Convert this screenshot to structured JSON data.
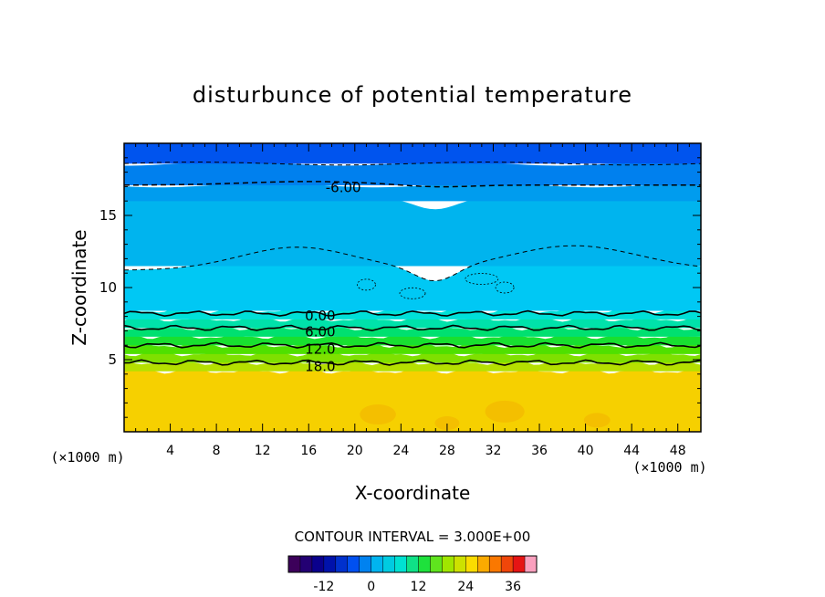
{
  "chart_data": {
    "type": "heatmap",
    "title": "disturbunce of potential temperature",
    "xlabel": "X-coordinate",
    "ylabel": "Z-coordinate",
    "xlim": [
      0,
      50
    ],
    "ylim": [
      0,
      20
    ],
    "x_ticks": [
      "4",
      "8",
      "12",
      "16",
      "20",
      "24",
      "28",
      "32",
      "36",
      "40",
      "44",
      "48"
    ],
    "y_ticks": [
      "5",
      "10",
      "15"
    ],
    "x_unit": "(×1000 m)",
    "y_unit": "(×1000 m)",
    "contour_interval_label": "CONTOUR INTERVAL = 3.000E+00",
    "contour_labels": [
      {
        "text": "-6.00",
        "x": 19,
        "y": 17.0
      },
      {
        "text": "0.00",
        "x": 17,
        "y": 8.1
      },
      {
        "text": "6.00",
        "x": 17,
        "y": 7.0
      },
      {
        "text": "12.0",
        "x": 17,
        "y": 5.8
      },
      {
        "text": "18.0",
        "x": 17,
        "y": 4.6
      }
    ],
    "colorbar": {
      "min": -21,
      "max": 42,
      "step": 3,
      "tick_labels": [
        "-12",
        "0",
        "12",
        "24",
        "36"
      ]
    },
    "layers": [
      {
        "z0": 0,
        "z1": 4.2,
        "value": 24,
        "color": "#f6d000"
      },
      {
        "z0": 4.2,
        "z1": 4.8,
        "value": 18,
        "color": "#b5e000"
      },
      {
        "z0": 4.8,
        "z1": 5.4,
        "value": 15,
        "color": "#7fe000"
      },
      {
        "z0": 5.4,
        "z1": 6.0,
        "value": 12,
        "color": "#4fe000"
      },
      {
        "z0": 6.0,
        "z1": 6.6,
        "value": 9,
        "color": "#18e030"
      },
      {
        "z0": 6.6,
        "z1": 7.2,
        "value": 6,
        "color": "#00e070"
      },
      {
        "z0": 7.2,
        "z1": 7.8,
        "value": 3,
        "color": "#00e2aa"
      },
      {
        "z0": 7.8,
        "z1": 8.4,
        "value": 0,
        "color": "#00e0d8"
      },
      {
        "z0": 8.4,
        "z1": 11.5,
        "value": -3,
        "color": "#00c8f4"
      },
      {
        "z0": 11.5,
        "z1": 16.0,
        "value": -3,
        "color": "#00b4ee"
      },
      {
        "z0": 16.0,
        "z1": 17.1,
        "value": -6,
        "color": "#009cee"
      },
      {
        "z0": 17.1,
        "z1": 18.6,
        "value": -9,
        "color": "#0080ee"
      },
      {
        "z0": 18.6,
        "z1": 20,
        "value": -12,
        "color": "#0054ee"
      }
    ]
  }
}
